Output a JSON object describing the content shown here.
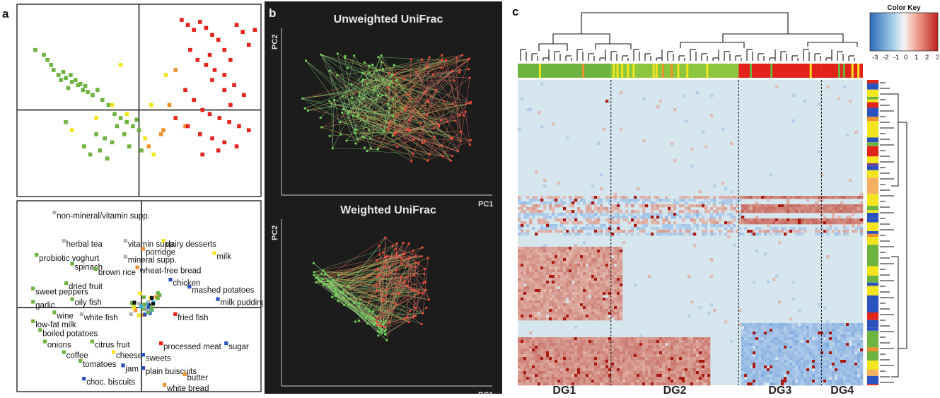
{
  "panels": {
    "a": {
      "letter": "a"
    },
    "b": {
      "letter": "b",
      "title_top": "Unweighted UniFrac",
      "title_bottom": "Weighted UniFrac",
      "x_axis": "PC1",
      "y_axis": "PC2"
    },
    "c": {
      "letter": "c",
      "color_key_title": "Color Key",
      "color_key_ticks": [
        "-3",
        "-2",
        "-1",
        "0",
        "1",
        "2",
        "3"
      ],
      "groups": [
        "DG1",
        "DG2",
        "DG3",
        "DG4"
      ]
    }
  },
  "colors": {
    "green": "#6db33f",
    "yellow": "#f3e51d",
    "orange": "#f0902a",
    "red": "#e2231a",
    "blue": "#2a52be",
    "gray": "#b0b0b0",
    "black": "#111111",
    "cyan": "#36b3d6"
  },
  "chart_data": [
    {
      "type": "scatter",
      "panel": "a-top",
      "xlim": [
        -1,
        1
      ],
      "ylim": [
        -1,
        1
      ],
      "series": [
        {
          "color": "green",
          "x": [
            -0.85,
            -0.78,
            -0.72,
            -0.66,
            -0.6,
            -0.55,
            -0.5,
            -0.46,
            -0.42,
            -0.38,
            -0.34,
            -0.75,
            -0.7,
            -0.64,
            -0.58,
            -0.52,
            -0.48,
            -0.44,
            -0.62,
            -0.56,
            -0.3,
            -0.25,
            -0.2,
            -0.15,
            -0.1,
            -0.05,
            0.0,
            -0.35,
            -0.28,
            -0.22,
            -0.18,
            -0.12,
            -0.4,
            -0.32,
            -0.26,
            -0.08,
            -0.6,
            -0.45,
            -0.02,
            0.02
          ],
          "y": [
            0.6,
            0.55,
            0.45,
            0.35,
            0.32,
            0.28,
            0.25,
            0.2,
            0.18,
            0.15,
            0.2,
            0.5,
            0.4,
            0.3,
            0.22,
            0.3,
            0.26,
            0.24,
            0.38,
            0.35,
            0.1,
            0.05,
            -0.05,
            -0.1,
            -0.15,
            -0.2,
            -0.25,
            -0.3,
            -0.35,
            -0.4,
            -0.2,
            -0.3,
            -0.55,
            -0.5,
            -0.6,
            -0.45,
            -0.15,
            -0.45,
            -0.12,
            -0.5
          ]
        },
        {
          "color": "yellow",
          "x": [
            -0.15,
            -0.55,
            -0.35,
            -0.1,
            0.05,
            0.12,
            0.3,
            0.22,
            -0.22,
            0.1
          ],
          "y": [
            0.45,
            -0.25,
            -0.1,
            -0.05,
            -0.35,
            -0.55,
            -0.1,
            0.35,
            0.05,
            0.05
          ]
        },
        {
          "color": "orange",
          "x": [
            0.08,
            0.18,
            0.2,
            0.3,
            0.38,
            0.25
          ],
          "y": [
            -0.45,
            -0.3,
            -0.25,
            0.4,
            -0.2,
            0.05
          ]
        },
        {
          "color": "red",
          "x": [
            0.35,
            0.4,
            0.45,
            0.5,
            0.55,
            0.6,
            0.65,
            0.7,
            0.75,
            0.8,
            0.85,
            0.9,
            0.42,
            0.48,
            0.55,
            0.62,
            0.7,
            0.78,
            0.86,
            0.95,
            0.38,
            0.45,
            0.52,
            0.58,
            0.66,
            0.74,
            0.82,
            0.9,
            0.3,
            0.4,
            0.5,
            0.6,
            0.7,
            0.8,
            0.6,
            0.7,
            0.52,
            0.65,
            0.75,
            0.58
          ],
          "y": [
            0.9,
            0.85,
            0.8,
            0.88,
            0.82,
            0.75,
            0.7,
            0.6,
            0.5,
            0.85,
            0.78,
            0.65,
            0.6,
            0.5,
            0.45,
            0.4,
            0.35,
            0.25,
            0.15,
            0.8,
            0.2,
            0.1,
            0.0,
            -0.05,
            -0.1,
            -0.15,
            -0.2,
            -0.25,
            -0.1,
            -0.2,
            -0.3,
            -0.35,
            -0.4,
            -0.45,
            0.3,
            0.2,
            -0.55,
            -0.5,
            0.05,
            0.55
          ]
        }
      ]
    },
    {
      "type": "scatter",
      "panel": "a-bottom",
      "xlim": [
        -1,
        1
      ],
      "ylim": [
        -1,
        1
      ],
      "labels": [
        {
          "text": "non-mineral/vitamin supp.",
          "x": -0.7,
          "y": 0.88,
          "color": "gray"
        },
        {
          "text": "herbal tea",
          "x": -0.62,
          "y": 0.56,
          "color": "gray"
        },
        {
          "text": "vitamin supp.",
          "x": -0.1,
          "y": 0.56,
          "color": "gray"
        },
        {
          "text": "dairy desserts",
          "x": 0.22,
          "y": 0.56,
          "color": "yellow"
        },
        {
          "text": "porridge",
          "x": 0.05,
          "y": 0.47,
          "color": "orange"
        },
        {
          "text": "milk",
          "x": 0.65,
          "y": 0.42,
          "color": "yellow"
        },
        {
          "text": "probiotic yoghurt",
          "x": -0.85,
          "y": 0.4,
          "color": "green"
        },
        {
          "text": "mineral supp.",
          "x": -0.1,
          "y": 0.38,
          "color": "gray"
        },
        {
          "text": "spinach",
          "x": -0.55,
          "y": 0.3,
          "color": "green"
        },
        {
          "text": "wheat-free bread",
          "x": 0.0,
          "y": 0.26,
          "color": "orange"
        },
        {
          "text": "brown rice",
          "x": -0.35,
          "y": 0.24,
          "color": "green"
        },
        {
          "text": "chicken",
          "x": 0.28,
          "y": 0.12,
          "color": "blue"
        },
        {
          "text": "dried fruit",
          "x": -0.6,
          "y": 0.08,
          "color": "green"
        },
        {
          "text": "mashed potatoes",
          "x": 0.44,
          "y": 0.04,
          "color": "blue"
        },
        {
          "text": "sweet peppers",
          "x": -0.88,
          "y": 0.02,
          "color": "green"
        },
        {
          "text": "oily fish",
          "x": -0.55,
          "y": -0.1,
          "color": "green"
        },
        {
          "text": "milk pudding",
          "x": 0.68,
          "y": -0.1,
          "color": "blue"
        },
        {
          "text": "garlic",
          "x": -0.88,
          "y": -0.13,
          "color": "green"
        },
        {
          "text": "wine",
          "x": -0.7,
          "y": -0.25,
          "color": "green"
        },
        {
          "text": "white fish",
          "x": -0.47,
          "y": -0.27,
          "color": "gray"
        },
        {
          "text": "fried fish",
          "x": 0.32,
          "y": -0.27,
          "color": "red"
        },
        {
          "text": "low-fat milk",
          "x": -0.88,
          "y": -0.35,
          "color": "green"
        },
        {
          "text": "boiled potatoes",
          "x": -0.82,
          "y": -0.45,
          "color": "green"
        },
        {
          "text": "onions",
          "x": -0.78,
          "y": -0.58,
          "color": "green"
        },
        {
          "text": "citrus fruit",
          "x": -0.38,
          "y": -0.58,
          "color": "green"
        },
        {
          "text": "processed meat",
          "x": 0.2,
          "y": -0.6,
          "color": "red"
        },
        {
          "text": "sugar",
          "x": 0.75,
          "y": -0.6,
          "color": "blue"
        },
        {
          "text": "coffee",
          "x": -0.62,
          "y": -0.7,
          "color": "green"
        },
        {
          "text": "cheese",
          "x": -0.2,
          "y": -0.7,
          "color": "yellow"
        },
        {
          "text": "sweets",
          "x": 0.05,
          "y": -0.73,
          "color": "blue"
        },
        {
          "text": "tomatoes",
          "x": -0.48,
          "y": -0.8,
          "color": "green"
        },
        {
          "text": "jam",
          "x": -0.12,
          "y": -0.85,
          "color": "blue"
        },
        {
          "text": "plain buiscuits",
          "x": 0.05,
          "y": -0.88,
          "color": "blue"
        },
        {
          "text": "butter",
          "x": 0.4,
          "y": -0.95,
          "color": "orange"
        },
        {
          "text": "choc. biscuits",
          "x": -0.45,
          "y": -1.0,
          "color": "blue"
        },
        {
          "text": "white bread",
          "x": 0.23,
          "y": -1.07,
          "color": "orange"
        }
      ]
    },
    {
      "type": "line",
      "panel": "b-top",
      "title": "Unweighted UniFrac",
      "xlabel": "PC1",
      "ylabel": "PC2",
      "series": [
        {
          "color": "green"
        },
        {
          "color": "orange"
        },
        {
          "color": "red"
        }
      ]
    },
    {
      "type": "line",
      "panel": "b-bottom",
      "title": "Weighted UniFrac",
      "xlabel": "PC1",
      "ylabel": "PC2",
      "series": [
        {
          "color": "green"
        },
        {
          "color": "orange"
        },
        {
          "color": "red"
        }
      ]
    },
    {
      "type": "heatmap",
      "panel": "c",
      "color_range": [
        -3,
        3
      ],
      "groups": [
        "DG1",
        "DG2",
        "DG3",
        "DG4"
      ],
      "group_fractions": [
        0.27,
        0.37,
        0.24,
        0.12
      ]
    }
  ]
}
